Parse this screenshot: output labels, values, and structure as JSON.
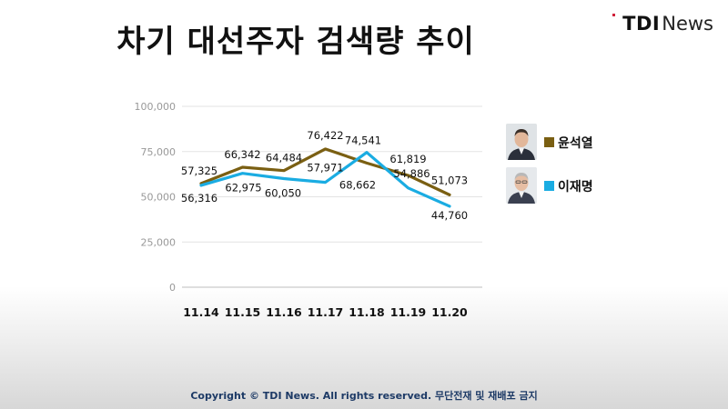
{
  "header": {
    "title": "차기 대선주자 검색량 추이"
  },
  "logo": {
    "brand": "TDI",
    "suffix": "News",
    "accent": "#d0213a"
  },
  "footer": {
    "text": "Copyright © TDI News. All rights reserved. 무단전재 및 재배포 금지"
  },
  "chart_data": {
    "type": "line",
    "categories": [
      "11.14",
      "11.15",
      "11.16",
      "11.17",
      "11.18",
      "11.19",
      "11.20"
    ],
    "series": [
      {
        "name": "윤석열",
        "color": "#7a5f12",
        "values": [
          57325,
          66342,
          64484,
          76422,
          68662,
          61819,
          51073
        ]
      },
      {
        "name": "이재명",
        "color": "#1aace2",
        "values": [
          56316,
          62975,
          60050,
          57971,
          74541,
          54886,
          44760
        ]
      }
    ],
    "yticks": [
      "0",
      "25,000",
      "50,000",
      "75,000",
      "100,000"
    ],
    "ytick_values": [
      0,
      25000,
      50000,
      75000,
      100000
    ],
    "ylim": [
      0,
      100000
    ],
    "data_labels": [
      [
        "57,325",
        "66,342",
        "64,484",
        "76,422",
        "68,662",
        "61,819",
        "51,073"
      ],
      [
        "56,316",
        "62,975",
        "60,050",
        "57,971",
        "74,541",
        "54,886",
        "44,760"
      ]
    ],
    "grid": true,
    "legend_position": "right"
  }
}
